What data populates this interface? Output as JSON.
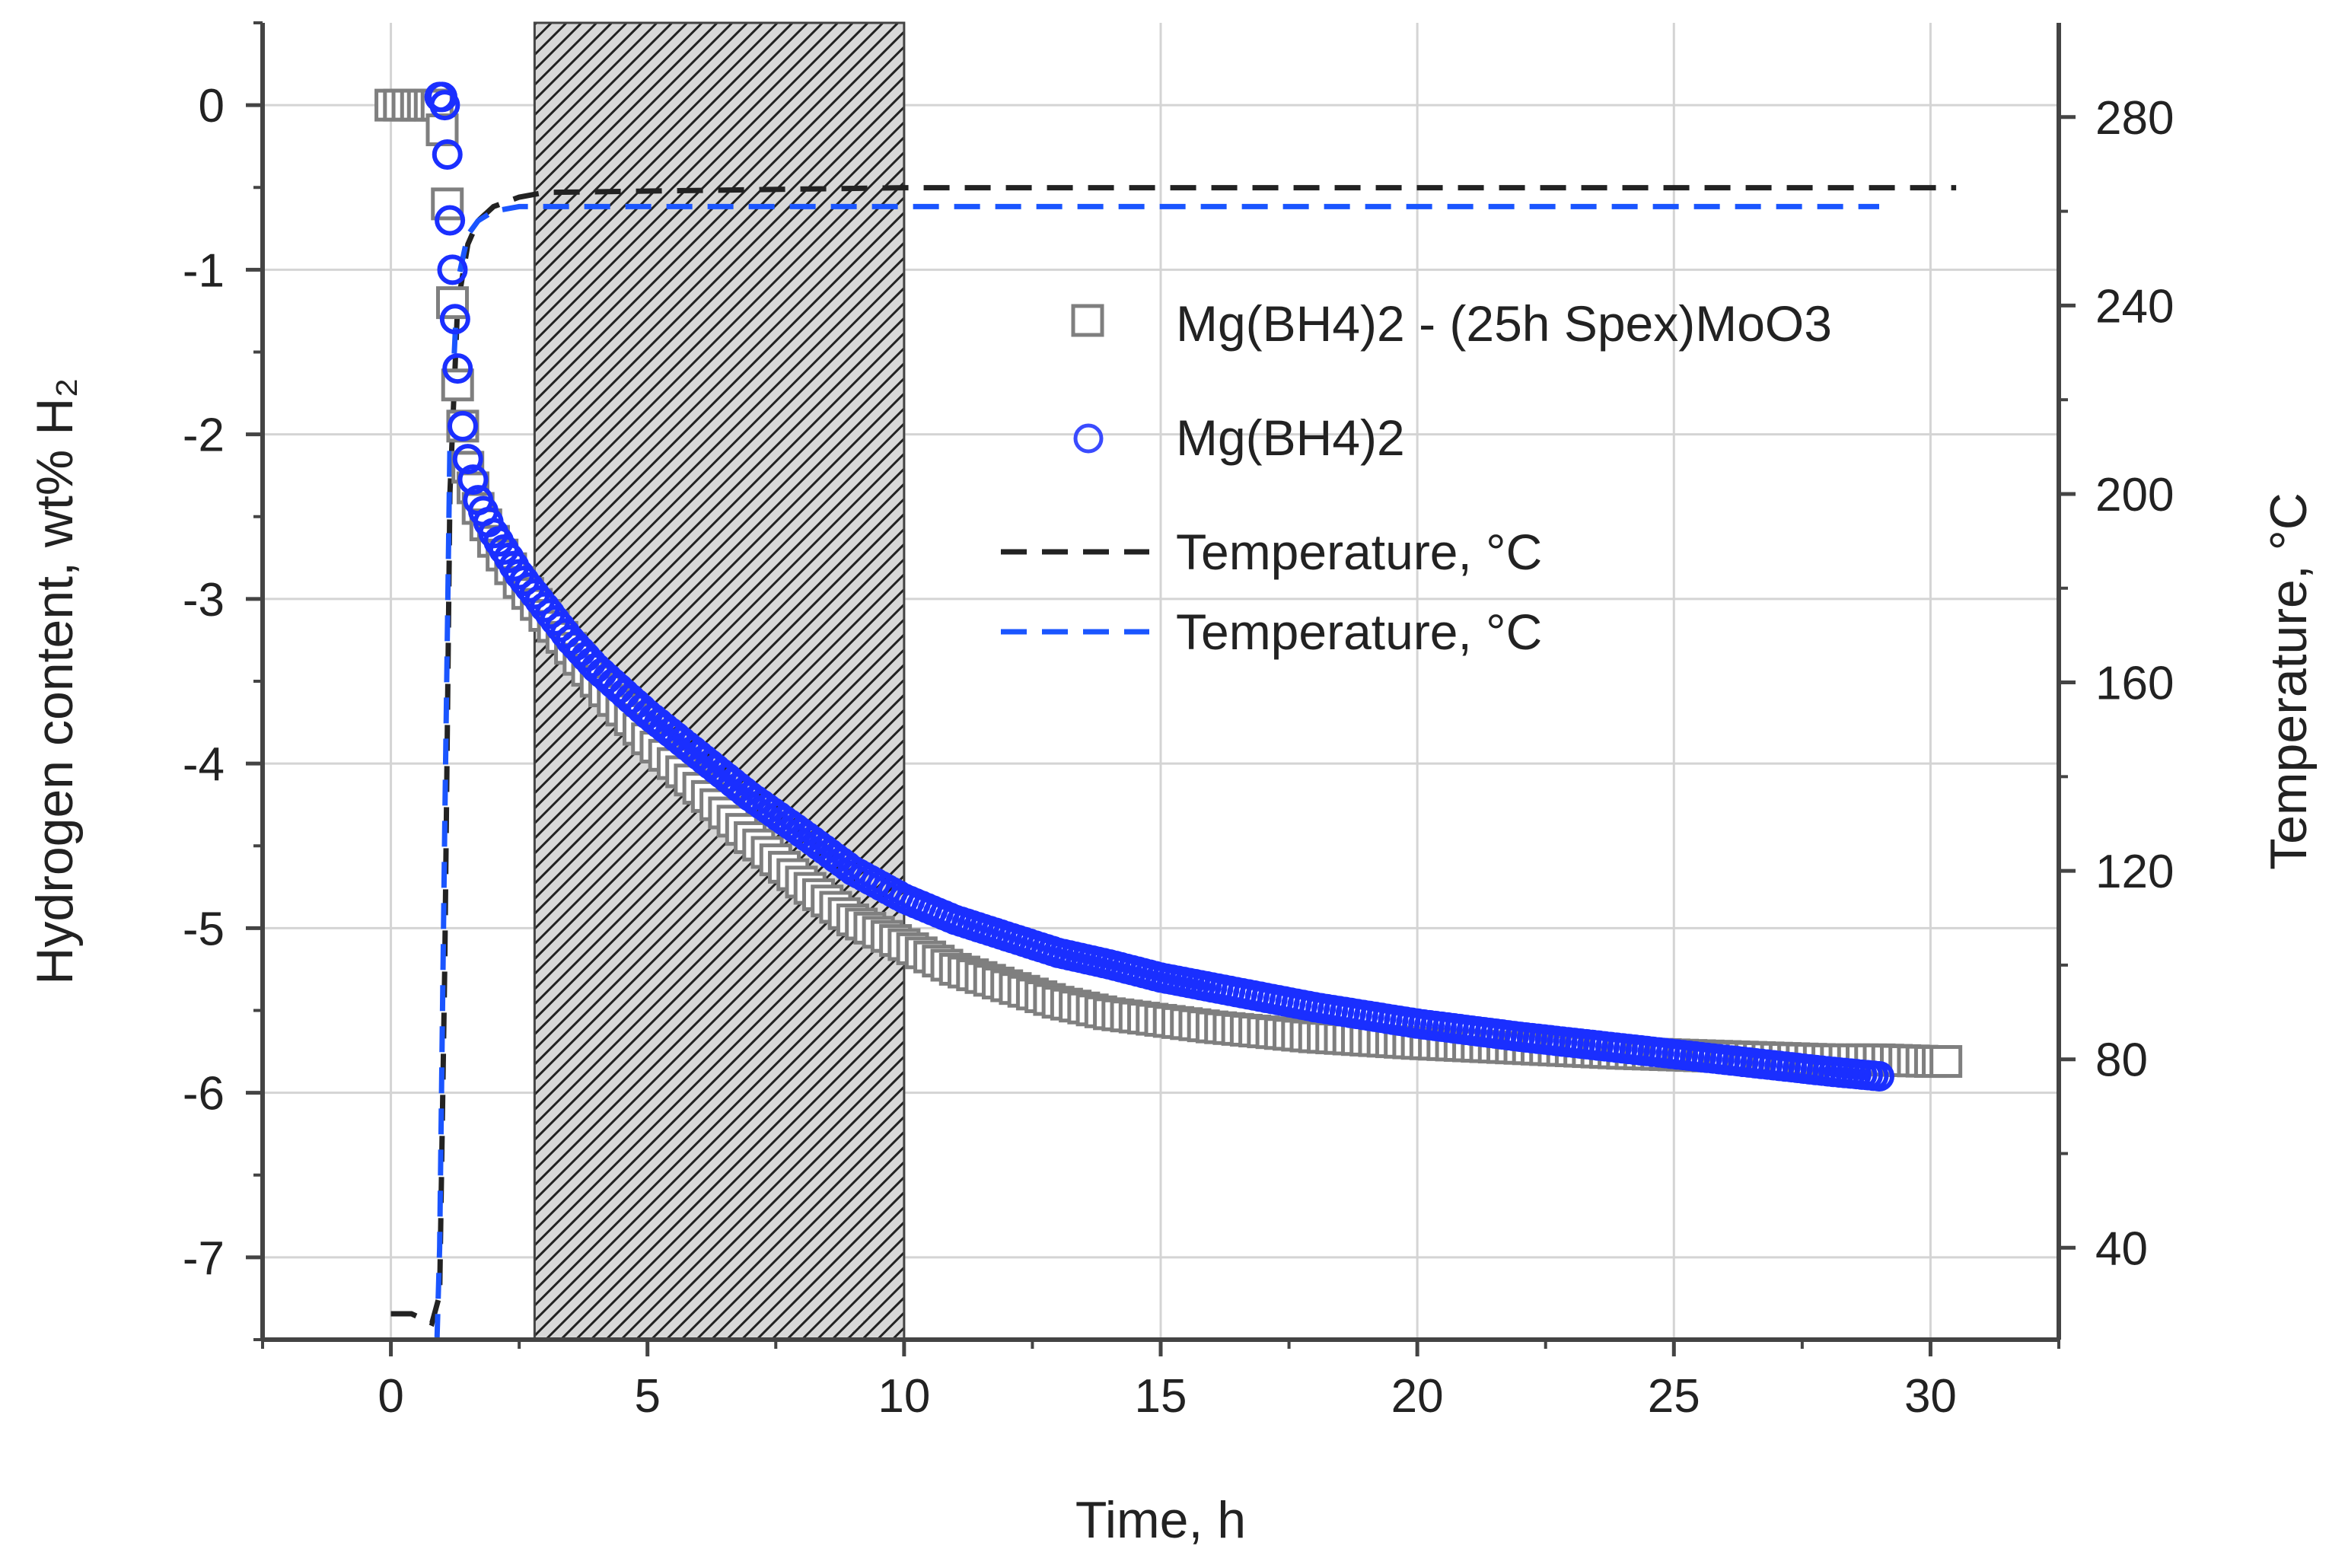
{
  "chart_data": {
    "type": "scatter",
    "title": "",
    "xlabel": "Time, h",
    "ylabel_left": "Hydrogen content, wt% H₂",
    "ylabel_right": "Temperature, °C",
    "xlim": [
      -2.5,
      32.5
    ],
    "ylim_left": [
      -7.5,
      0.5
    ],
    "ylim_right": [
      20.5,
      300
    ],
    "xticks": [
      0,
      5,
      10,
      15,
      20,
      25,
      30
    ],
    "yticks_left": [
      0,
      -1,
      -2,
      -3,
      -4,
      -5,
      -6,
      -7
    ],
    "yticks_right": [
      40,
      80,
      120,
      160,
      200,
      240,
      280
    ],
    "grid": true,
    "shaded_region": {
      "x_start": 2.8,
      "x_end": 10,
      "pattern": "hatched"
    },
    "series": [
      {
        "name": "Mg(BH4)2 - (25h Spex)MoO3",
        "axis": "left",
        "marker": "square",
        "color": "#7f7f7f",
        "x": [
          0,
          0.5,
          0.9,
          1.0,
          1.1,
          1.2,
          1.3,
          1.5,
          1.7,
          2.0,
          2.5,
          3.0,
          3.5,
          4.0,
          5.0,
          6.0,
          7.0,
          8.0,
          9.0,
          10.0,
          11.0,
          12.0,
          13.0,
          14.0,
          15.0,
          16.0,
          18.0,
          20.0,
          22.0,
          24.0,
          26.0,
          28.0,
          29.0,
          30.0,
          30.3
        ],
        "y": [
          0,
          0,
          0,
          -0.15,
          -0.6,
          -1.2,
          -1.7,
          -2.2,
          -2.45,
          -2.65,
          -2.9,
          -3.1,
          -3.3,
          -3.5,
          -3.85,
          -4.15,
          -4.45,
          -4.72,
          -4.95,
          -5.1,
          -5.25,
          -5.35,
          -5.45,
          -5.52,
          -5.56,
          -5.6,
          -5.66,
          -5.7,
          -5.73,
          -5.76,
          -5.78,
          -5.8,
          -5.8,
          -5.81,
          -5.81
        ]
      },
      {
        "name": "Mg(BH4)2",
        "axis": "left",
        "marker": "circle",
        "color": "#1a2fff",
        "x": [
          0.95,
          1.0,
          1.05,
          1.1,
          1.15,
          1.2,
          1.25,
          1.3,
          1.4,
          1.5,
          1.7,
          2.0,
          2.5,
          3.0,
          3.5,
          4.0,
          5.0,
          6.0,
          7.0,
          8.0,
          9.0,
          10.0,
          11.0,
          12.0,
          13.0,
          14.0,
          15.0,
          16.0,
          18.0,
          20.0,
          22.0,
          24.0,
          26.0,
          28.0,
          29.0
        ],
        "y": [
          0.05,
          0.05,
          0.0,
          -0.3,
          -0.7,
          -1.0,
          -1.3,
          -1.6,
          -1.95,
          -2.15,
          -2.4,
          -2.6,
          -2.85,
          -3.05,
          -3.25,
          -3.42,
          -3.7,
          -3.95,
          -4.2,
          -4.42,
          -4.65,
          -4.82,
          -4.95,
          -5.05,
          -5.15,
          -5.22,
          -5.3,
          -5.36,
          -5.48,
          -5.58,
          -5.66,
          -5.73,
          -5.8,
          -5.87,
          -5.9
        ]
      },
      {
        "name": "Temperature, °C",
        "axis": "right",
        "style": "dashed",
        "color": "#222222",
        "x": [
          0,
          0.4,
          0.8,
          0.95,
          1.05,
          1.15,
          1.3,
          1.5,
          1.7,
          2.0,
          2.5,
          3.0,
          10.0,
          20.0,
          30.5
        ],
        "y": [
          26,
          26,
          24,
          30,
          100,
          200,
          240,
          253,
          258,
          261,
          263,
          264,
          265,
          265,
          265
        ]
      },
      {
        "name": "Temperature, °C",
        "axis": "right",
        "style": "dashed",
        "color": "#1a55ff",
        "x": [
          0.85,
          0.9,
          0.95,
          1.05,
          1.15,
          1.3,
          1.5,
          1.7,
          2.0,
          2.5,
          3.0,
          10.0,
          20.0,
          29.0
        ],
        "y": [
          21,
          21,
          40,
          130,
          210,
          245,
          255,
          258,
          260,
          261,
          261,
          261,
          261,
          261
        ]
      }
    ]
  }
}
